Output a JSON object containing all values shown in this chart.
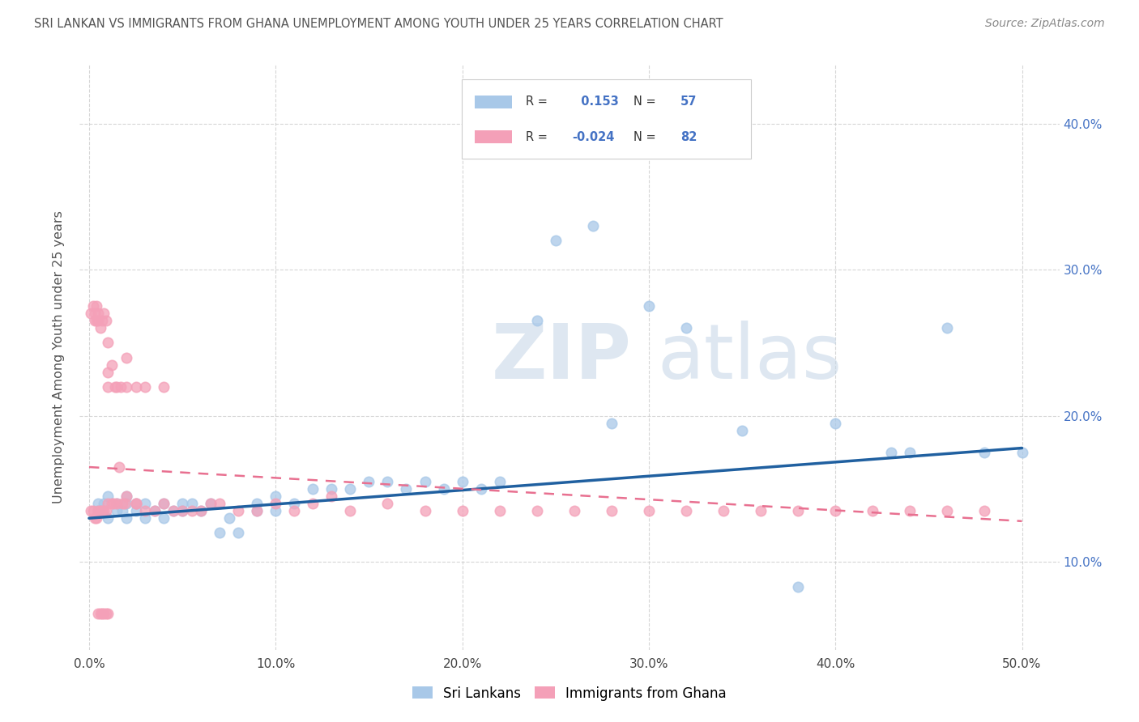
{
  "title": "SRI LANKAN VS IMMIGRANTS FROM GHANA UNEMPLOYMENT AMONG YOUTH UNDER 25 YEARS CORRELATION CHART",
  "source": "Source: ZipAtlas.com",
  "ylabel": "Unemployment Among Youth under 25 years",
  "xlim": [
    -0.005,
    0.52
  ],
  "ylim": [
    0.04,
    0.44
  ],
  "x_ticks": [
    0.0,
    0.1,
    0.2,
    0.3,
    0.4,
    0.5
  ],
  "x_labels": [
    "0.0%",
    "10.0%",
    "20.0%",
    "30.0%",
    "40.0%",
    "50.0%"
  ],
  "y_ticks": [
    0.1,
    0.2,
    0.3,
    0.4
  ],
  "y_labels": [
    "10.0%",
    "20.0%",
    "30.0%",
    "40.0%"
  ],
  "sri_lankan_R": 0.153,
  "sri_lankan_N": 57,
  "ghana_R": -0.024,
  "ghana_N": 82,
  "sri_lankan_color": "#a8c8e8",
  "ghana_color": "#f4a0b8",
  "sri_lankan_line_color": "#2060a0",
  "ghana_line_color": "#e87090",
  "legend_label_1": "Sri Lankans",
  "legend_label_2": "Immigrants from Ghana",
  "watermark_zip": "ZIP",
  "watermark_atlas": "atlas",
  "sl_x": [
    0.005,
    0.005,
    0.008,
    0.01,
    0.01,
    0.015,
    0.015,
    0.018,
    0.02,
    0.02,
    0.02,
    0.025,
    0.025,
    0.03,
    0.03,
    0.035,
    0.04,
    0.04,
    0.045,
    0.05,
    0.05,
    0.055,
    0.06,
    0.065,
    0.07,
    0.075,
    0.08,
    0.09,
    0.09,
    0.1,
    0.1,
    0.11,
    0.12,
    0.13,
    0.14,
    0.15,
    0.16,
    0.17,
    0.18,
    0.19,
    0.2,
    0.21,
    0.22,
    0.24,
    0.25,
    0.27,
    0.28,
    0.3,
    0.32,
    0.35,
    0.38,
    0.4,
    0.43,
    0.44,
    0.46,
    0.48,
    0.5
  ],
  "sl_y": [
    0.135,
    0.14,
    0.14,
    0.13,
    0.145,
    0.135,
    0.14,
    0.135,
    0.13,
    0.14,
    0.145,
    0.135,
    0.14,
    0.13,
    0.14,
    0.135,
    0.13,
    0.14,
    0.135,
    0.135,
    0.14,
    0.14,
    0.135,
    0.14,
    0.12,
    0.13,
    0.12,
    0.135,
    0.14,
    0.135,
    0.145,
    0.14,
    0.15,
    0.15,
    0.15,
    0.155,
    0.155,
    0.15,
    0.155,
    0.15,
    0.155,
    0.15,
    0.155,
    0.265,
    0.32,
    0.33,
    0.195,
    0.275,
    0.26,
    0.19,
    0.083,
    0.195,
    0.175,
    0.175,
    0.26,
    0.175,
    0.175
  ],
  "gh_x": [
    0.001,
    0.001,
    0.002,
    0.002,
    0.003,
    0.003,
    0.003,
    0.004,
    0.004,
    0.004,
    0.005,
    0.005,
    0.005,
    0.006,
    0.006,
    0.007,
    0.007,
    0.008,
    0.008,
    0.009,
    0.009,
    0.01,
    0.01,
    0.01,
    0.01,
    0.012,
    0.012,
    0.013,
    0.014,
    0.015,
    0.015,
    0.016,
    0.017,
    0.018,
    0.019,
    0.02,
    0.02,
    0.02,
    0.025,
    0.025,
    0.025,
    0.03,
    0.03,
    0.035,
    0.04,
    0.04,
    0.045,
    0.05,
    0.055,
    0.06,
    0.065,
    0.07,
    0.08,
    0.09,
    0.1,
    0.11,
    0.12,
    0.13,
    0.14,
    0.16,
    0.18,
    0.2,
    0.22,
    0.24,
    0.26,
    0.28,
    0.3,
    0.32,
    0.34,
    0.36,
    0.38,
    0.4,
    0.42,
    0.44,
    0.46,
    0.48,
    0.005,
    0.006,
    0.007,
    0.008,
    0.009,
    0.01
  ],
  "gh_y": [
    0.135,
    0.27,
    0.135,
    0.275,
    0.13,
    0.265,
    0.27,
    0.13,
    0.265,
    0.275,
    0.135,
    0.265,
    0.27,
    0.135,
    0.26,
    0.135,
    0.265,
    0.135,
    0.27,
    0.135,
    0.265,
    0.14,
    0.22,
    0.23,
    0.25,
    0.14,
    0.235,
    0.14,
    0.22,
    0.14,
    0.22,
    0.165,
    0.22,
    0.14,
    0.14,
    0.145,
    0.22,
    0.24,
    0.14,
    0.22,
    0.14,
    0.135,
    0.22,
    0.135,
    0.14,
    0.22,
    0.135,
    0.135,
    0.135,
    0.135,
    0.14,
    0.14,
    0.135,
    0.135,
    0.14,
    0.135,
    0.14,
    0.145,
    0.135,
    0.14,
    0.135,
    0.135,
    0.135,
    0.135,
    0.135,
    0.135,
    0.135,
    0.135,
    0.135,
    0.135,
    0.135,
    0.135,
    0.135,
    0.135,
    0.135,
    0.135,
    0.065,
    0.065,
    0.065,
    0.065,
    0.065,
    0.065
  ]
}
